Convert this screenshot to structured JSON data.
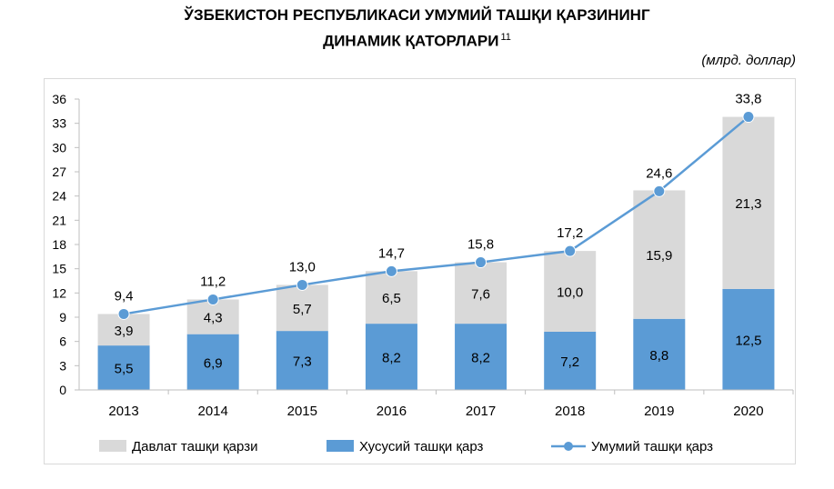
{
  "title_line1": "ЎЗБЕКИСТОН РЕСПУБЛИКАСИ УМУМИЙ ТАШҚИ ҚАРЗИНИНГ",
  "title_line2": "ДИНАМИК ҚАТОРЛАРИ",
  "footnote_mark": "11",
  "unit_label": "(млрд. доллар)",
  "colors": {
    "government": "#d9d9d9",
    "private": "#5b9bd5",
    "total": "#5b9bd5"
  },
  "chart_data": {
    "type": "bar",
    "stacked": true,
    "categories": [
      "2013",
      "2014",
      "2015",
      "2016",
      "2017",
      "2018",
      "2019",
      "2020"
    ],
    "series": [
      {
        "name": "Хусусий ташқи қарз",
        "kind": "bar",
        "values": [
          5.5,
          6.9,
          7.3,
          8.2,
          8.2,
          7.2,
          8.8,
          12.5
        ],
        "labels": [
          "5,5",
          "6,9",
          "7,3",
          "8,2",
          "8,2",
          "7,2",
          "8,8",
          "12,5"
        ]
      },
      {
        "name": "Давлат ташқи қарзи",
        "kind": "bar",
        "values": [
          3.9,
          4.3,
          5.7,
          6.5,
          7.6,
          10.0,
          15.9,
          21.3
        ],
        "labels": [
          "3,9",
          "4,3",
          "5,7",
          "6,5",
          "7,6",
          "10,0",
          "15,9",
          "21,3"
        ]
      },
      {
        "name": "Умумий ташқи қарз",
        "kind": "line",
        "values": [
          9.4,
          11.2,
          13.0,
          14.7,
          15.8,
          17.2,
          24.6,
          33.8
        ],
        "labels": [
          "9,4",
          "11,2",
          "13,0",
          "14,7",
          "15,8",
          "17,2",
          "24,6",
          "33,8"
        ]
      }
    ],
    "ylim": [
      0,
      36
    ],
    "yticks": [
      "0",
      "3",
      "6",
      "9",
      "12",
      "15",
      "18",
      "21",
      "24",
      "27",
      "30",
      "33",
      "36"
    ],
    "grid": false,
    "legend_position": "bottom"
  }
}
